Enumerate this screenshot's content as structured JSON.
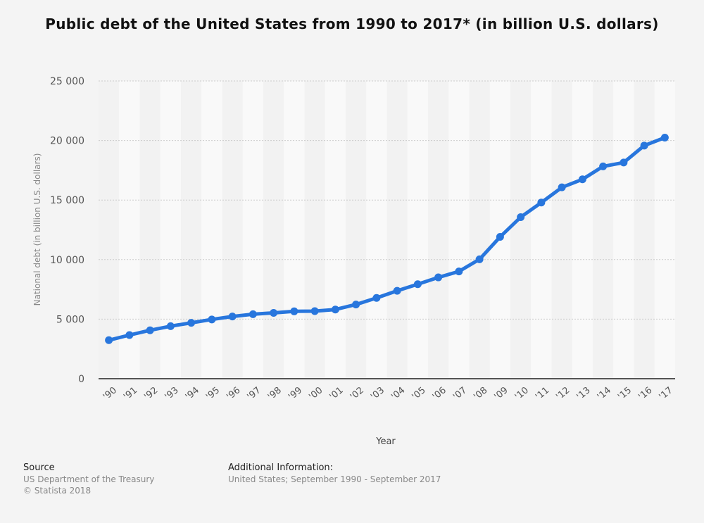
{
  "title": "Public debt of the United States from 1990 to 2017* (in billion U.S. dollars)",
  "colors": {
    "background": "#f4f4f4",
    "band_light": "#f9f9f9",
    "band_dark": "#f2f2f2",
    "line": "#2876dd",
    "axis": "#555555",
    "grid": "#cccccc"
  },
  "chart_data": {
    "type": "line",
    "title": "Public debt of the United States from 1990 to 2017* (in billion U.S. dollars)",
    "xlabel": "Year",
    "ylabel": "National debt (in billion U.S. dollars)",
    "ylim": [
      0,
      25000
    ],
    "yticks": [
      0,
      5000,
      10000,
      15000,
      20000,
      25000
    ],
    "ytick_labels": [
      "0",
      "5 000",
      "10 000",
      "15 000",
      "20 000",
      "25 000"
    ],
    "grid": true,
    "legend": null,
    "categories": [
      "'90",
      "'91",
      "'92",
      "'93",
      "'94",
      "'95",
      "'96",
      "'97",
      "'98",
      "'99",
      "'00",
      "'01",
      "'02",
      "'03",
      "'04",
      "'05",
      "'06",
      "'07",
      "'08",
      "'09",
      "'10",
      "'11",
      "'12",
      "'13",
      "'14",
      "'15",
      "'16",
      "'17"
    ],
    "series": [
      {
        "name": "National debt",
        "values": [
          3233,
          3665,
          4064,
          4411,
          4693,
          4974,
          5225,
          5413,
          5526,
          5656,
          5674,
          5807,
          6228,
          6783,
          7379,
          7933,
          8507,
          9008,
          10025,
          11910,
          13562,
          14790,
          16066,
          16738,
          17824,
          18151,
          19573,
          20245
        ]
      }
    ]
  },
  "footer": {
    "source_heading": "Source",
    "source_lines": [
      "US Department of the Treasury",
      "© Statista 2018"
    ],
    "additional_heading": "Additional Information:",
    "additional_text": "United States; September 1990  - September 2017"
  }
}
